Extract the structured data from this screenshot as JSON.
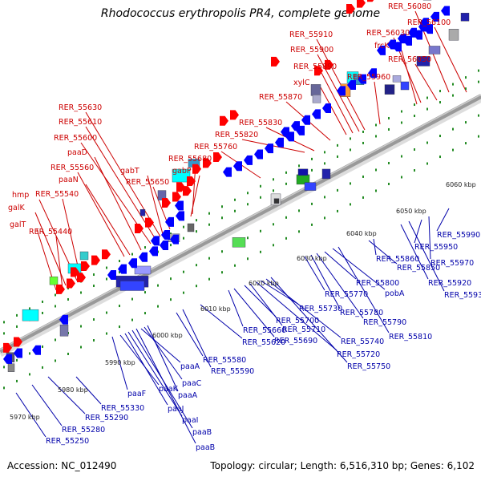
{
  "title": "Rhodococcus erythropolis PR4, complete genome",
  "footer": {
    "accession": "Accession: NC_012490",
    "summary": "Topology: circular; Length: 6,516,310 bp; Genes: 6,102"
  },
  "colors": {
    "backbone": "#999999",
    "forward_gene": "#ff0000",
    "reverse_gene": "#0000ff",
    "tick": "#228b22",
    "top_label": "#cc0000",
    "bottom_label": "#0000aa"
  },
  "scale_ticks": [
    "5970 kbp",
    "5980 kbp",
    "5990 kbp",
    "6000 kbp",
    "6010 kbp",
    "6020 kbp",
    "6030 kbp",
    "6040 kbp",
    "6050 kbp",
    "6060 kbp"
  ],
  "top_labels": [
    "RER_55440",
    "galT",
    "galK",
    "hmp",
    "RER_55540",
    "RER_55560",
    "paaN",
    "paaD",
    "RER_55600",
    "RER_55610",
    "RER_55630",
    "gabT",
    "RER_55650",
    "gabP",
    "RER_55680",
    "RER_55760",
    "RER_55820",
    "RER_55830",
    "RER_55870",
    "xylC",
    "RER_55890",
    "RER_55900",
    "RER_55910",
    "RER_55960",
    "frcK",
    "RER_56030",
    "RER_56050",
    "RER_56080",
    "RER_56100"
  ],
  "bottom_labels": [
    "RER_55250",
    "RER_55280",
    "RER_55290",
    "RER_55330",
    "paaF",
    "paaK",
    "paaJ",
    "paaI",
    "paaB",
    "paaB",
    "paaA",
    "paaC",
    "paaA",
    "RER_55580",
    "RER_55590",
    "RER_55620",
    "RER_55660",
    "RER_55690",
    "RER_55700",
    "RER_55710",
    "RER_55720",
    "RER_55730",
    "RER_55740",
    "RER_55750",
    "RER_55770",
    "RER_55780",
    "RER_55790",
    "RER_55800",
    "pobA",
    "RER_55810",
    "RER_55850",
    "RER_55860",
    "RER_55920",
    "RER_55930",
    "RER_55950",
    "RER_55970",
    "RER_55990"
  ]
}
